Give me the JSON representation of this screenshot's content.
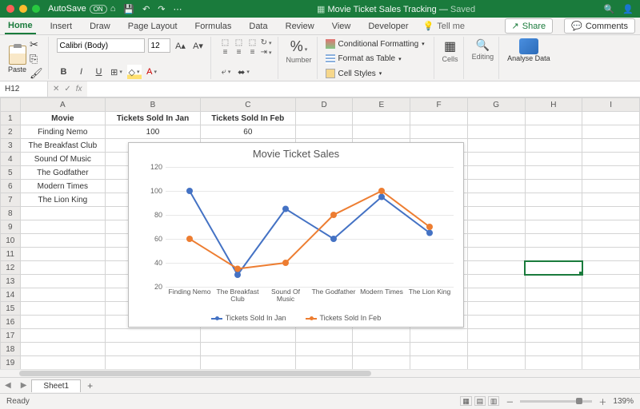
{
  "titlebar": {
    "autosave_label": "AutoSave",
    "autosave_state": "ON",
    "doc_title": "Movie Ticket Sales Tracking",
    "doc_status": "Saved"
  },
  "tabs": {
    "items": [
      "Home",
      "Insert",
      "Draw",
      "Page Layout",
      "Formulas",
      "Data",
      "Review",
      "View",
      "Developer"
    ],
    "active": 0,
    "tell_me": "Tell me",
    "share": "Share",
    "comments": "Comments"
  },
  "ribbon": {
    "paste": "Paste",
    "font_name": "Calibri (Body)",
    "font_size": "12",
    "number_label": "Number",
    "cond_fmt": "Conditional Formatting",
    "fmt_table": "Format as Table",
    "cell_styles": "Cell Styles",
    "cells": "Cells",
    "editing": "Editing",
    "analyse": "Analyse Data"
  },
  "namebox": "H12",
  "sheet": {
    "columns": [
      "A",
      "B",
      "C",
      "D",
      "E",
      "F",
      "G",
      "H",
      "I"
    ],
    "headers": {
      "A": "Movie",
      "B": "Tickets Sold In Jan",
      "C": "Tickets Sold In Feb"
    },
    "rows": [
      {
        "A": "Finding Nemo",
        "B": "100",
        "C": "60"
      },
      {
        "A": "The Breakfast Club",
        "B": "30",
        "C": "35"
      },
      {
        "A": "Sound Of Music",
        "B": "",
        "C": ""
      },
      {
        "A": "The Godfather",
        "B": "",
        "C": ""
      },
      {
        "A": "Modern Times",
        "B": "",
        "C": ""
      },
      {
        "A": "The Lion King",
        "B": "",
        "C": ""
      }
    ],
    "total_rows": 19,
    "selected_cell": "H12"
  },
  "chart": {
    "type": "line",
    "title": "Movie Ticket Sales",
    "title_fontsize": 13,
    "categories": [
      "Finding Nemo",
      "The Breakfast Club",
      "Sound Of Music",
      "The Godfather",
      "Modern Times",
      "The Lion King"
    ],
    "series": [
      {
        "name": "Tickets Sold In Jan",
        "color": "#4472c4",
        "values": [
          100,
          30,
          85,
          60,
          95,
          65
        ]
      },
      {
        "name": "Tickets Sold In Feb",
        "color": "#ed7d31",
        "values": [
          60,
          35,
          40,
          80,
          100,
          70
        ]
      }
    ],
    "ylim": [
      20,
      120
    ],
    "ytick_step": 20,
    "grid_color": "#e8e8e8",
    "background_color": "#ffffff",
    "line_width": 2,
    "marker": "circle",
    "marker_size": 4,
    "label_fontsize": 9
  },
  "sheettabs": {
    "active": "Sheet1"
  },
  "status": {
    "ready": "Ready",
    "zoom": "139%"
  }
}
